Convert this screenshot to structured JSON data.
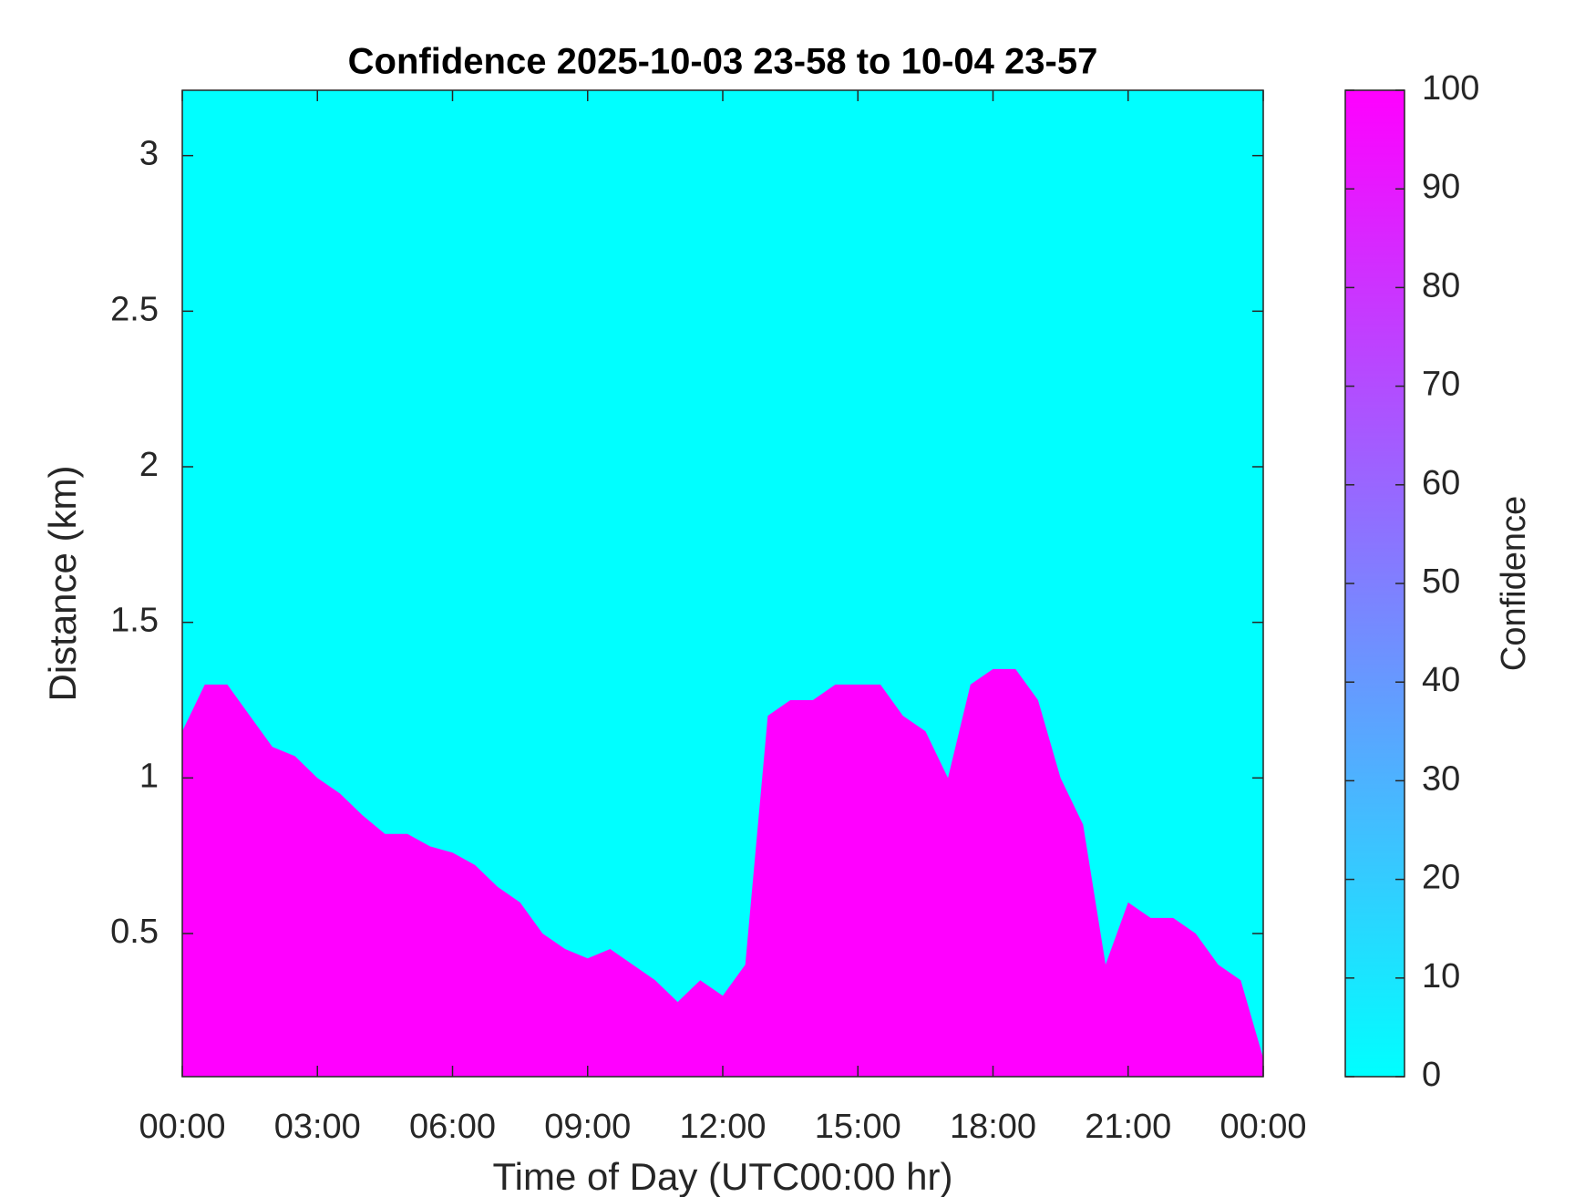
{
  "chart_data": {
    "type": "heatmap",
    "title": "Confidence 2025-10-03 23-58 to 10-04 23-57",
    "x_label": "Time of Day (UTC00:00 hr)",
    "y_label": "Distance (km)",
    "x": [
      0,
      0.5,
      1,
      1.5,
      2,
      2.5,
      3,
      3.5,
      4,
      4.5,
      5,
      5.5,
      6,
      6.5,
      7,
      7.5,
      8,
      8.5,
      9,
      9.5,
      10,
      10.5,
      11,
      11.5,
      12,
      12.5,
      13,
      13.5,
      14,
      14.5,
      15,
      15.5,
      16,
      16.5,
      17,
      17.5,
      18,
      18.5,
      19,
      19.5,
      20,
      20.5,
      21,
      21.5,
      22,
      22.5,
      23,
      23.5,
      24
    ],
    "values": [
      1.15,
      1.3,
      1.3,
      1.2,
      1.1,
      1.07,
      1.0,
      0.95,
      0.88,
      0.82,
      0.82,
      0.78,
      0.76,
      0.72,
      0.65,
      0.6,
      0.5,
      0.45,
      0.42,
      0.45,
      0.4,
      0.35,
      0.28,
      0.35,
      0.3,
      0.4,
      1.2,
      1.25,
      1.25,
      1.3,
      1.3,
      1.3,
      1.2,
      1.15,
      1.0,
      1.3,
      1.35,
      1.35,
      1.25,
      1.0,
      0.85,
      0.4,
      0.6,
      0.55,
      0.55,
      0.5,
      0.4,
      0.35,
      0.1
    ],
    "xlim": [
      0,
      24
    ],
    "xticks": [
      {
        "value": 0,
        "label": "00:00"
      },
      {
        "value": 3,
        "label": "03:00"
      },
      {
        "value": 6,
        "label": "06:00"
      },
      {
        "value": 9,
        "label": "09:00"
      },
      {
        "value": 12,
        "label": "12:00"
      },
      {
        "value": 15,
        "label": "15:00"
      },
      {
        "value": 18,
        "label": "18:00"
      },
      {
        "value": 21,
        "label": "21:00"
      },
      {
        "value": 24,
        "label": "00:00"
      }
    ],
    "ylim": [
      0.04,
      3.21
    ],
    "yticks": [
      0.5,
      1,
      1.5,
      2,
      2.5,
      3
    ],
    "colorbar_label": "Confidence",
    "clim": [
      0,
      100
    ],
    "cticks": [
      0,
      10,
      20,
      30,
      40,
      50,
      60,
      70,
      80,
      90,
      100
    ],
    "low_color": "#00ffff",
    "high_color": "#ff00ff"
  }
}
